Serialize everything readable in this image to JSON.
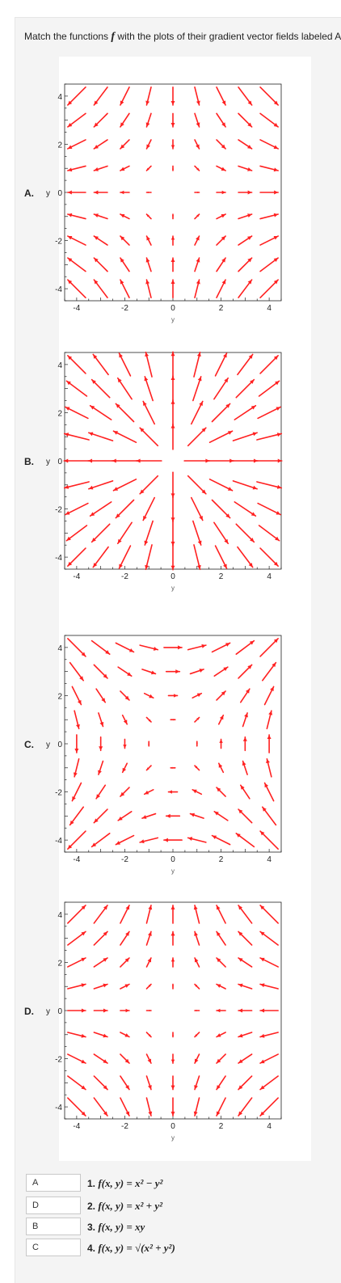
{
  "question": {
    "text_before": "Match the functions ",
    "symbol": "f",
    "text_after": " with the plots of their gradient vector fields labeled A"
  },
  "plots": [
    {
      "label": "A.",
      "field_type": "A",
      "axis_ylabel": "y",
      "axis_xlabel": "y",
      "x_ticks": [
        "-4",
        "-2",
        "0",
        "2",
        "4"
      ],
      "y_ticks": [
        "4",
        "2",
        "0",
        "-2",
        "-4"
      ]
    },
    {
      "label": "B.",
      "field_type": "B",
      "axis_ylabel": "y",
      "axis_xlabel": "y",
      "x_ticks": [
        "-4",
        "-2",
        "0",
        "2",
        "4"
      ],
      "y_ticks": [
        "4",
        "2",
        "0",
        "-2",
        "-4"
      ]
    },
    {
      "label": "C.",
      "field_type": "C",
      "axis_ylabel": "y",
      "axis_xlabel": "y",
      "x_ticks": [
        "-4",
        "-2",
        "0",
        "2",
        "4"
      ],
      "y_ticks": [
        "4",
        "2",
        "0",
        "-2",
        "-4"
      ]
    },
    {
      "label": "D.",
      "field_type": "D",
      "axis_ylabel": "y",
      "axis_xlabel": "y",
      "x_ticks": [
        "-4",
        "-2",
        "0",
        "2",
        "4"
      ],
      "y_ticks": [
        "4",
        "2",
        "0",
        "-2",
        "-4"
      ]
    }
  ],
  "answers": [
    {
      "value": "A"
    },
    {
      "value": "D"
    },
    {
      "value": "B"
    },
    {
      "value": "C"
    }
  ],
  "options": [
    {
      "num": "1.",
      "formula": "f(x, y) = x² − y²"
    },
    {
      "num": "2.",
      "formula": "f(x, y) = x² + y²"
    },
    {
      "num": "3.",
      "formula": "f(x, y) = xy"
    },
    {
      "num": "4.",
      "formula": "f(x, y) = √(x² + y²)"
    }
  ],
  "colors": {
    "arrow": "#ff2020",
    "panel_bg": "#f4f4f4"
  }
}
